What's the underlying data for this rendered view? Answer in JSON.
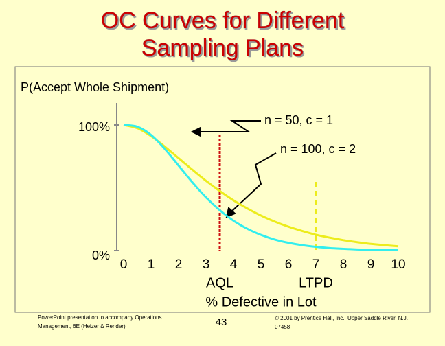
{
  "chart_data": {
    "type": "line",
    "title": "OC Curves for Different Sampling Plans",
    "y_label": "P(Accept Whole Shipment)",
    "x_label": "% Defective in Lot",
    "x": [
      0,
      0.5,
      1,
      1.5,
      2,
      2.5,
      3,
      3.5,
      4,
      4.5,
      5,
      5.5,
      6,
      6.5,
      7,
      7.5,
      8,
      8.5,
      9,
      9.5,
      10
    ],
    "series": [
      {
        "name": "n = 50, c = 1",
        "color": "#ecec1c",
        "values": [
          100,
          97.4,
          91.1,
          82.7,
          73.6,
          64.4,
          55.5,
          47.4,
          40.0,
          33.6,
          27.9,
          23.1,
          19.0,
          15.6,
          12.6,
          10.3,
          8.3,
          6.7,
          5.3,
          4.3,
          3.4
        ]
      },
      {
        "name": "n = 100, c = 2",
        "color": "#33eeee",
        "values": [
          100,
          98.6,
          92.0,
          80.9,
          67.7,
          54.4,
          42.3,
          32.1,
          23.8,
          17.4,
          12.5,
          8.8,
          6.2,
          4.3,
          3.0,
          2.0,
          1.4,
          0.9,
          0.6,
          0.4,
          0.3
        ]
      }
    ],
    "xlim": [
      0,
      10
    ],
    "xticks": [
      0,
      1,
      2,
      3,
      4,
      5,
      6,
      7,
      8,
      9,
      10
    ],
    "ylim": [
      0,
      100
    ],
    "yticks": [
      {
        "value": 0,
        "label": "0%"
      },
      {
        "value": 100,
        "label": "100%"
      }
    ],
    "markers": [
      {
        "label": "AQL",
        "value": 3.5,
        "color": "#cc1111"
      },
      {
        "label": "LTPD",
        "value": 7,
        "color": "#ecec1c"
      }
    ],
    "footer": {
      "left": [
        "PowerPoint presentation to accompany Operations",
        "Management, 6E (Heizer & Render)"
      ],
      "page": "43",
      "right": [
        "© 2001 by Prentice Hall, Inc., Upper Saddle River, N.J.",
        "07458"
      ]
    }
  }
}
